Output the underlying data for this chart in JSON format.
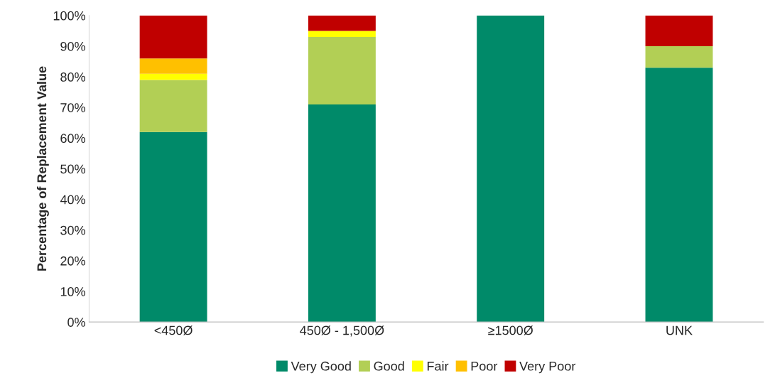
{
  "chart_data": {
    "type": "bar",
    "stacked": true,
    "ylabel": "Percentage of Replacement Value",
    "categories": [
      "<450Ø",
      "450Ø - 1,500Ø",
      "≥1500Ø",
      "UNK"
    ],
    "series": [
      {
        "name": "Very Good",
        "color": "#008a69",
        "values": [
          62,
          71,
          100,
          83
        ]
      },
      {
        "name": "Good",
        "color": "#b2cf55",
        "values": [
          17,
          22,
          0,
          7
        ]
      },
      {
        "name": "Fair",
        "color": "#ffff00",
        "values": [
          2,
          2,
          0,
          0
        ]
      },
      {
        "name": "Poor",
        "color": "#ffc000",
        "values": [
          5,
          0,
          0,
          0
        ]
      },
      {
        "name": "Very Poor",
        "color": "#c00000",
        "values": [
          14,
          5,
          0,
          10
        ]
      }
    ],
    "ylim": [
      0,
      100
    ],
    "yticks": [
      {
        "value": 0,
        "label": "0%"
      },
      {
        "value": 10,
        "label": "10%"
      },
      {
        "value": 20,
        "label": "20%"
      },
      {
        "value": 30,
        "label": "30%"
      },
      {
        "value": 40,
        "label": "40%"
      },
      {
        "value": 50,
        "label": "50%"
      },
      {
        "value": 60,
        "label": "60%"
      },
      {
        "value": 70,
        "label": "70%"
      },
      {
        "value": 80,
        "label": "80%"
      },
      {
        "value": 90,
        "label": "90%"
      },
      {
        "value": 100,
        "label": "100%"
      }
    ],
    "grid": false,
    "legend": "bottom"
  }
}
